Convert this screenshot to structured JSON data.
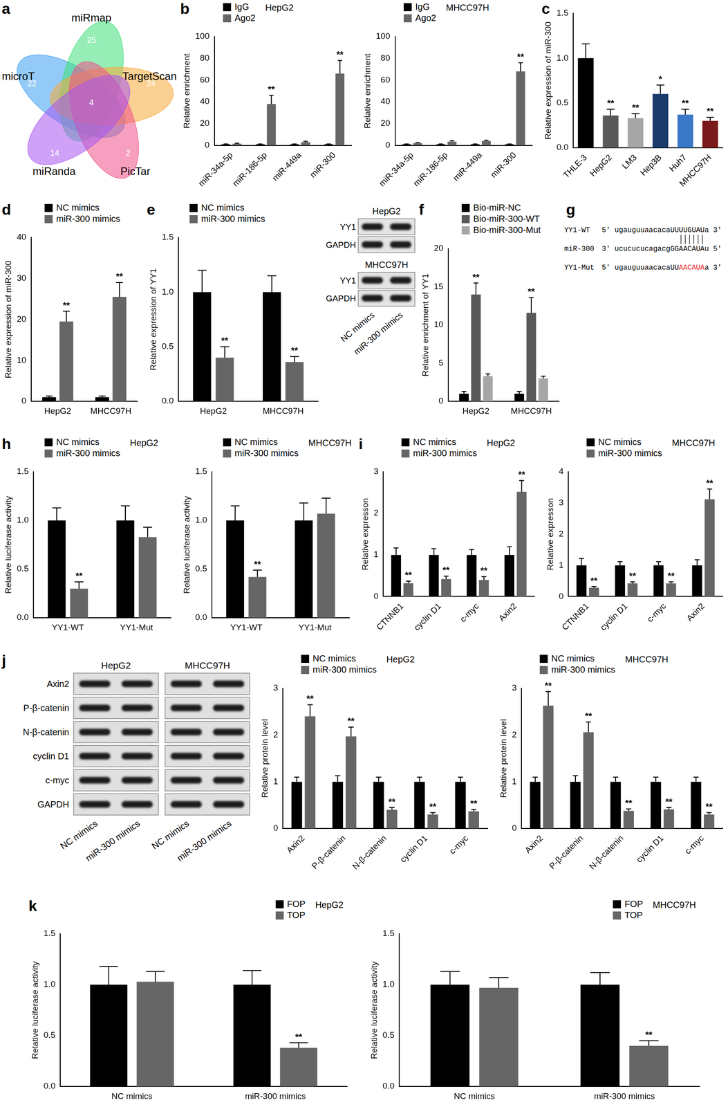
{
  "venn": {
    "panel": "a",
    "sets": [
      {
        "name": "microT",
        "color": "#3a9ef0",
        "count": 22
      },
      {
        "name": "miRmap",
        "color": "#3fe07a",
        "count": 25
      },
      {
        "name": "TargetScan",
        "color": "#f7a93a",
        "count": 24
      },
      {
        "name": "PicTar",
        "color": "#f0508a",
        "count": 2
      },
      {
        "name": "miRanda",
        "color": "#a855f0",
        "count": 14
      }
    ],
    "shared_by_all": 4
  },
  "blots": [
    {
      "groups": [
        {
          "title": "HepG2",
          "rows": [
            "YY1",
            "GAPDH"
          ]
        },
        {
          "title": "MHCC97H",
          "rows": [
            "YY1",
            "GAPDH"
          ]
        }
      ],
      "lanes": [
        "NC mimics",
        "miR-300 mimics"
      ]
    },
    {
      "panel": "j",
      "columns": [
        "HepG2",
        "MHCC97H"
      ],
      "rows": [
        "Axin2",
        "P-β-catenin",
        "N-β-catenin",
        "cyclin D1",
        "c-myc",
        "GAPDH"
      ],
      "lanes": [
        "NC mimics",
        "miR-300 mimics"
      ]
    }
  ],
  "sequence": {
    "panel": "g",
    "rows": [
      {
        "name": "YY1-WT",
        "parts": [
          {
            "text": "5' ugauguuaacacaUUUUGUAUa 3'"
          }
        ]
      },
      {
        "name": "miR-300",
        "parts": [
          {
            "text": "3' ucucucucagacgGGAACAUAu 5'"
          }
        ]
      },
      {
        "name": "YY1-Mut",
        "parts": [
          {
            "text": "5' ugauguuaacacaUU"
          },
          {
            "text": "AACAUA",
            "color": "#e8262a"
          },
          {
            "text": "a 3'"
          }
        ]
      }
    ]
  },
  "chart_data": [
    {
      "panel": "b",
      "type": "bar",
      "title": "HepG2",
      "categories": [
        "miR-34a-5p",
        "miR-186-5p",
        "miR-449a",
        "miR-300"
      ],
      "series": [
        {
          "name": "IgG",
          "color": "#000000",
          "values": [
            1,
            1,
            1,
            1
          ],
          "errors": [
            0.3,
            0.3,
            0.3,
            0.3
          ]
        },
        {
          "name": "Ago2",
          "color": "#666666",
          "values": [
            1.5,
            38,
            3,
            66
          ],
          "errors": [
            0.5,
            8,
            0.8,
            12
          ],
          "annotations": [
            null,
            "**",
            null,
            "**"
          ]
        }
      ],
      "ylabel": "Relative enrichment",
      "ylim": [
        0,
        100
      ],
      "yticks": [
        0,
        20,
        40,
        60,
        80,
        100
      ],
      "grid": false,
      "legend": "top-left"
    },
    {
      "type": "bar",
      "title": "MHCC97H",
      "categories": [
        "miR-34a-5p",
        "miR-186-5p",
        "miR-449a",
        "miR-300"
      ],
      "series": [
        {
          "name": "IgG",
          "color": "#000000",
          "values": [
            1,
            1,
            1,
            1
          ],
          "errors": [
            0.3,
            0.3,
            0.3,
            0.3
          ]
        },
        {
          "name": "Ago2",
          "color": "#666666",
          "values": [
            2,
            3.5,
            4,
            68
          ],
          "errors": [
            0.5,
            0.8,
            0.8,
            8
          ],
          "annotations": [
            null,
            null,
            null,
            "**"
          ]
        }
      ],
      "ylabel": "Relative enrichment",
      "ylim": [
        0,
        100
      ],
      "yticks": [
        0,
        20,
        40,
        60,
        80,
        100
      ],
      "grid": false,
      "legend": "top-left"
    },
    {
      "panel": "c",
      "type": "bar",
      "categories": [
        "THLE-3",
        "HepG2",
        "LM3",
        "Hep3B",
        "Huh7",
        "MHCC97H"
      ],
      "values": [
        1.0,
        0.36,
        0.33,
        0.6,
        0.37,
        0.3
      ],
      "errors": [
        0.16,
        0.07,
        0.05,
        0.1,
        0.06,
        0.04
      ],
      "annotations": [
        null,
        "**",
        "**",
        "*",
        "**",
        "**"
      ],
      "colors": [
        "#000000",
        "#595959",
        "#a6a6a6",
        "#1a3a6b",
        "#3c78c8",
        "#7a1a1a"
      ],
      "ylabel": "Relative expression of miR-300",
      "ylim": [
        0,
        1.5
      ],
      "yticks": [
        {
          "value": 0,
          "label": "0.0"
        },
        {
          "value": 0.5,
          "label": "0.5"
        },
        {
          "value": 1,
          "label": "1.0"
        },
        {
          "value": 1.5,
          "label": "1.5"
        }
      ],
      "grid": false
    },
    {
      "panel": "d",
      "type": "bar",
      "categories": [
        "HepG2",
        "MHCC97H"
      ],
      "series": [
        {
          "name": "NC mimics",
          "color": "#000000",
          "values": [
            1,
            1
          ],
          "errors": [
            0.3,
            0.3
          ]
        },
        {
          "name": "miR-300 mimics",
          "color": "#666666",
          "values": [
            19.5,
            25.5
          ],
          "errors": [
            2.5,
            3.5
          ],
          "annotations": [
            "**",
            "**"
          ]
        }
      ],
      "ylabel": "Relative expression of miR-300",
      "ylim": [
        0,
        40
      ],
      "yticks": [
        0,
        10,
        20,
        30,
        40
      ],
      "grid": false,
      "legend": "top-left"
    },
    {
      "panel": "e",
      "type": "bar",
      "categories": [
        "HepG2",
        "MHCC97H"
      ],
      "series": [
        {
          "name": "NC mimics",
          "color": "#000000",
          "values": [
            1,
            1
          ],
          "errors": [
            0.2,
            0.15
          ]
        },
        {
          "name": "miR-300 mimics",
          "color": "#666666",
          "values": [
            0.4,
            0.36
          ],
          "errors": [
            0.1,
            0.05
          ],
          "annotations": [
            "**",
            "**"
          ]
        }
      ],
      "ylabel": "Relative expression of YY1",
      "ylim": [
        0,
        1.5
      ],
      "yticks": [
        {
          "value": 0,
          "label": "0.0"
        },
        {
          "value": 0.5,
          "label": "0.5"
        },
        {
          "value": 1,
          "label": "1.0"
        },
        {
          "value": 1.5,
          "label": "1.5"
        }
      ],
      "grid": false,
      "legend": "top-left"
    },
    {
      "panel": "f",
      "type": "bar",
      "categories": [
        "HepG2",
        "MHCC97H"
      ],
      "series": [
        {
          "name": "Bio-miR-NC",
          "color": "#000000",
          "values": [
            1,
            1
          ],
          "errors": [
            0.3,
            0.3
          ]
        },
        {
          "name": "Bio-miR-300-WT",
          "color": "#595959",
          "values": [
            14,
            11.6
          ],
          "errors": [
            1.5,
            2
          ],
          "annotations": [
            "**",
            "**"
          ]
        },
        {
          "name": "Bio-miR-300-Mut",
          "color": "#a6a6a6",
          "values": [
            3.3,
            3
          ],
          "errors": [
            0.3,
            0.3
          ]
        }
      ],
      "ylabel": "Relative enrichment of YY1",
      "ylim": [
        0,
        20
      ],
      "yticks": [
        0,
        5,
        10,
        15,
        20
      ],
      "grid": false,
      "legend": "top-left"
    },
    {
      "panel": "h",
      "type": "bar",
      "title": "HepG2",
      "categories": [
        "YY1-WT",
        "YY1-Mut"
      ],
      "series": [
        {
          "name": "NC mimics",
          "color": "#000000",
          "values": [
            1,
            1
          ],
          "errors": [
            0.13,
            0.15
          ]
        },
        {
          "name": "miR-300 mimics",
          "color": "#666666",
          "values": [
            0.3,
            0.83
          ],
          "errors": [
            0.07,
            0.1
          ],
          "annotations": [
            "**",
            null
          ]
        }
      ],
      "ylabel": "Relative luciferase activity",
      "ylim": [
        0,
        1.5
      ],
      "yticks": [
        {
          "value": 0,
          "label": "0.0"
        },
        {
          "value": 0.5,
          "label": "0.5"
        },
        {
          "value": 1,
          "label": "1.0"
        },
        {
          "value": 1.5,
          "label": "1.5"
        }
      ],
      "grid": false,
      "legend": "top-left"
    },
    {
      "type": "bar",
      "title": "MHCC97H",
      "categories": [
        "YY1-WT",
        "YY1-Mut"
      ],
      "series": [
        {
          "name": "NC mimics",
          "color": "#000000",
          "values": [
            1,
            1
          ],
          "errors": [
            0.15,
            0.18
          ]
        },
        {
          "name": "miR-300 mimics",
          "color": "#666666",
          "values": [
            0.42,
            1.07
          ],
          "errors": [
            0.07,
            0.16
          ],
          "annotations": [
            "**",
            null
          ]
        }
      ],
      "ylabel": "Relative luciferase activity",
      "ylim": [
        0,
        1.5
      ],
      "yticks": [
        {
          "value": 0,
          "label": "0.0"
        },
        {
          "value": 0.5,
          "label": "0.5"
        },
        {
          "value": 1,
          "label": "1.0"
        },
        {
          "value": 1.5,
          "label": "1.5"
        }
      ],
      "grid": false,
      "legend": "top-left"
    },
    {
      "panel": "i",
      "type": "bar",
      "title": "HepG2",
      "categories": [
        "CTNNB1",
        "cyclin D1",
        "c-myc",
        "Axin2"
      ],
      "series": [
        {
          "name": "NC mimics",
          "color": "#000000",
          "values": [
            1,
            1,
            1,
            1
          ],
          "errors": [
            0.17,
            0.15,
            0.13,
            0.2
          ]
        },
        {
          "name": "miR-300 mimics",
          "color": "#666666",
          "values": [
            0.32,
            0.42,
            0.4,
            2.52
          ],
          "errors": [
            0.05,
            0.07,
            0.08,
            0.27
          ],
          "annotations": [
            "**",
            "**",
            "**",
            "**"
          ]
        }
      ],
      "ylabel": "Relative expresson",
      "ylim": [
        0,
        3
      ],
      "yticks": [
        0,
        1,
        2,
        3
      ],
      "grid": false,
      "legend": "top-left"
    },
    {
      "type": "bar",
      "title": "MHCC97H",
      "categories": [
        "CTNNB1",
        "cyclin D1",
        "c-myc",
        "Axin2"
      ],
      "series": [
        {
          "name": "NC mimics",
          "color": "#000000",
          "values": [
            1,
            1,
            1,
            1
          ],
          "errors": [
            0.22,
            0.12,
            0.12,
            0.18
          ]
        },
        {
          "name": "miR-300 mimics",
          "color": "#666666",
          "values": [
            0.28,
            0.42,
            0.42,
            3.12
          ],
          "errors": [
            0.04,
            0.05,
            0.05,
            0.33
          ],
          "annotations": [
            "**",
            "**",
            "**",
            "**"
          ]
        }
      ],
      "ylabel": "Relative expresson",
      "ylim": [
        0,
        4
      ],
      "yticks": [
        0,
        1,
        2,
        3,
        4
      ],
      "grid": false,
      "legend": "top-left"
    },
    {
      "type": "bar",
      "title": "HepG2",
      "categories": [
        "Axin2",
        "P-β-catenin",
        "N-β-catenin",
        "cyclin D1",
        "c-myc"
      ],
      "series": [
        {
          "name": "NC mimics",
          "color": "#000000",
          "values": [
            1,
            1,
            1,
            1,
            1
          ],
          "errors": [
            0.1,
            0.13,
            0.1,
            0.1,
            0.1
          ]
        },
        {
          "name": "miR-300 mimics",
          "color": "#666666",
          "values": [
            2.4,
            1.97,
            0.4,
            0.3,
            0.37
          ],
          "errors": [
            0.25,
            0.2,
            0.05,
            0.04,
            0.04
          ],
          "annotations": [
            "**",
            "**",
            "**",
            "**",
            "**"
          ]
        }
      ],
      "ylabel": "Relative protein level",
      "ylim": [
        0,
        3
      ],
      "yticks": [
        0,
        1,
        2,
        3
      ],
      "grid": false,
      "legend": "top-left"
    },
    {
      "type": "bar",
      "title": "MHCC97H",
      "categories": [
        "Axin2",
        "P-β-catenin",
        "N-β-catenin",
        "cyclin D1",
        "c-myc"
      ],
      "series": [
        {
          "name": "NC mimics",
          "color": "#000000",
          "values": [
            1,
            1,
            1,
            1,
            1
          ],
          "errors": [
            0.1,
            0.13,
            0.1,
            0.1,
            0.1
          ]
        },
        {
          "name": "miR-300 mimics",
          "color": "#666666",
          "values": [
            2.63,
            2.06,
            0.38,
            0.41,
            0.3
          ],
          "errors": [
            0.3,
            0.22,
            0.04,
            0.04,
            0.04
          ],
          "annotations": [
            "**",
            "**",
            "**",
            "**",
            "**"
          ]
        }
      ],
      "ylabel": "Relative protein level",
      "ylim": [
        0,
        3
      ],
      "yticks": [
        0,
        1,
        2,
        3
      ],
      "grid": false,
      "legend": "top-left"
    },
    {
      "panel": "k",
      "type": "bar",
      "title": "HepG2",
      "categories": [
        "NC mimics",
        "miR-300 mimics"
      ],
      "series": [
        {
          "name": "FOP",
          "color": "#000000",
          "values": [
            1,
            1
          ],
          "errors": [
            0.18,
            0.14
          ]
        },
        {
          "name": "TOP",
          "color": "#666666",
          "values": [
            1.03,
            0.38
          ],
          "errors": [
            0.1,
            0.05
          ],
          "annotations": [
            null,
            "**"
          ]
        }
      ],
      "ylabel": "Relative luciferase activity",
      "ylim": [
        0,
        1.5
      ],
      "yticks": [
        {
          "value": 0,
          "label": "0.0"
        },
        {
          "value": 0.5,
          "label": "0.5"
        },
        {
          "value": 1,
          "label": "1.0"
        },
        {
          "value": 1.5,
          "label": "1.5"
        }
      ],
      "grid": false,
      "legend": "top-right"
    },
    {
      "type": "bar",
      "title": "MHCC97H",
      "categories": [
        "NC mimics",
        "miR-300 mimics"
      ],
      "series": [
        {
          "name": "FOP",
          "color": "#000000",
          "values": [
            1,
            1
          ],
          "errors": [
            0.13,
            0.12
          ]
        },
        {
          "name": "TOP",
          "color": "#666666",
          "values": [
            0.97,
            0.4
          ],
          "errors": [
            0.1,
            0.05
          ],
          "annotations": [
            null,
            "**"
          ]
        }
      ],
      "ylabel": "Relative luciferase activity",
      "ylim": [
        0,
        1.5
      ],
      "yticks": [
        {
          "value": 0,
          "label": "0.0"
        },
        {
          "value": 0.5,
          "label": "0.5"
        },
        {
          "value": 1,
          "label": "1.0"
        },
        {
          "value": 1.5,
          "label": "1.5"
        }
      ],
      "grid": false,
      "legend": "top-right"
    }
  ]
}
